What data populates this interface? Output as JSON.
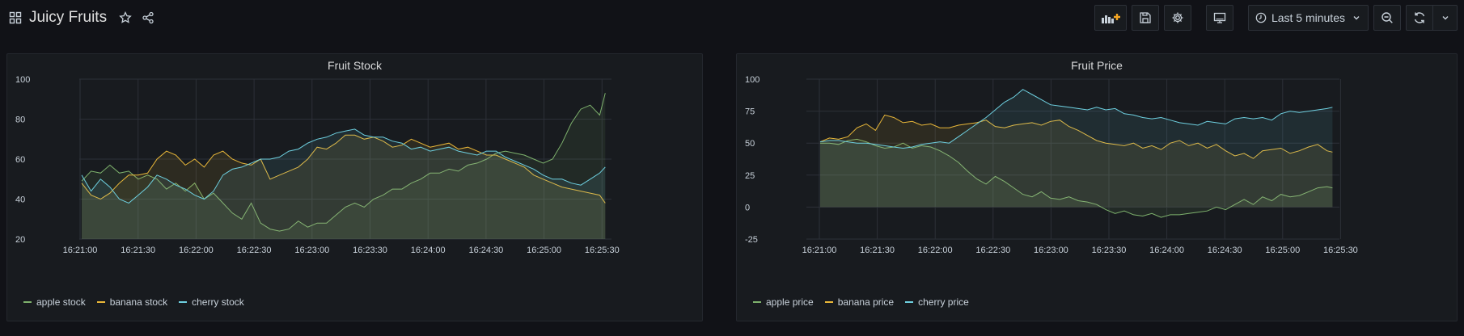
{
  "dashboard": {
    "title": "Juicy Fruits",
    "time_range": "Last 5 minutes",
    "icons": {
      "grid": "dashboard-grid-icon",
      "star": "star-icon",
      "share": "share-icon",
      "add_panel": "add-panel-icon",
      "save": "save-icon",
      "settings": "gear-icon",
      "tv": "tv-mode-icon",
      "clock": "clock-icon",
      "chevron": "chevron-down-icon",
      "zoom_out": "zoom-out-icon",
      "refresh": "refresh-icon"
    },
    "accent": "#f5a623"
  },
  "colors": {
    "apple": "#7eb26d",
    "banana": "#eab839",
    "cherry": "#6ed0e0"
  },
  "chart_data": [
    {
      "type": "area",
      "title": "Fruit Stock",
      "xlabels": [
        "16:21:00",
        "16:21:30",
        "16:22:00",
        "16:22:30",
        "16:23:00",
        "16:23:30",
        "16:24:00",
        "16:24:30",
        "16:25:00",
        "16:25:30"
      ],
      "xlim": [
        0,
        280
      ],
      "ylim": [
        20,
        100
      ],
      "yticks": [
        20,
        40,
        60,
        80,
        100
      ],
      "grid": true,
      "legend_position": "bottom-left",
      "series": [
        {
          "name": "apple stock",
          "color": "#7eb26d",
          "x": [
            0,
            5,
            10,
            15,
            20,
            25,
            30,
            35,
            40,
            45,
            50,
            55,
            60,
            65,
            70,
            75,
            80,
            85,
            90,
            95,
            100,
            105,
            110,
            115,
            120,
            125,
            130,
            135,
            140,
            145,
            150,
            155,
            160,
            165,
            170,
            175,
            180,
            185,
            190,
            195,
            200,
            205,
            210,
            215,
            220,
            225,
            230,
            235,
            240,
            245,
            250,
            255,
            260,
            265,
            270,
            275,
            278
          ],
          "values": [
            49,
            54,
            53,
            57,
            53,
            54,
            50,
            52,
            50,
            45,
            48,
            44,
            48,
            40,
            43,
            38,
            33,
            30,
            38,
            28,
            25,
            24,
            25,
            29,
            26,
            28,
            28,
            32,
            36,
            38,
            36,
            40,
            42,
            45,
            45,
            48,
            50,
            53,
            53,
            55,
            54,
            57,
            58,
            60,
            63,
            64,
            63,
            62,
            60,
            58,
            60,
            68,
            78,
            85,
            87,
            82,
            93
          ]
        },
        {
          "name": "banana stock",
          "color": "#eab839",
          "x": [
            0,
            5,
            10,
            15,
            20,
            25,
            30,
            35,
            40,
            45,
            50,
            55,
            60,
            65,
            70,
            75,
            80,
            85,
            90,
            95,
            100,
            105,
            110,
            115,
            120,
            125,
            130,
            135,
            140,
            145,
            150,
            155,
            160,
            165,
            170,
            175,
            180,
            185,
            190,
            195,
            200,
            205,
            210,
            215,
            220,
            225,
            230,
            235,
            240,
            245,
            250,
            255,
            260,
            265,
            270,
            275,
            278
          ],
          "values": [
            48,
            42,
            40,
            43,
            48,
            52,
            52,
            53,
            60,
            64,
            62,
            57,
            60,
            56,
            62,
            64,
            60,
            58,
            57,
            60,
            50,
            52,
            54,
            56,
            60,
            66,
            65,
            68,
            72,
            72,
            70,
            71,
            69,
            66,
            67,
            70,
            68,
            66,
            67,
            68,
            65,
            66,
            64,
            62,
            62,
            60,
            58,
            56,
            52,
            50,
            48,
            46,
            45,
            44,
            43,
            42,
            38
          ]
        },
        {
          "name": "cherry stock",
          "color": "#6ed0e0",
          "x": [
            0,
            5,
            10,
            15,
            20,
            25,
            30,
            35,
            40,
            45,
            50,
            55,
            60,
            65,
            70,
            75,
            80,
            85,
            90,
            95,
            100,
            105,
            110,
            115,
            120,
            125,
            130,
            135,
            140,
            145,
            150,
            155,
            160,
            165,
            170,
            175,
            180,
            185,
            190,
            195,
            200,
            205,
            210,
            215,
            220,
            225,
            230,
            235,
            240,
            245,
            250,
            255,
            260,
            265,
            270,
            275,
            278
          ],
          "values": [
            52,
            44,
            50,
            46,
            40,
            38,
            42,
            46,
            52,
            50,
            47,
            45,
            42,
            40,
            44,
            52,
            55,
            56,
            58,
            60,
            60,
            61,
            64,
            65,
            68,
            70,
            71,
            73,
            74,
            75,
            72,
            71,
            71,
            69,
            68,
            65,
            66,
            64,
            65,
            66,
            64,
            63,
            62,
            64,
            64,
            61,
            59,
            57,
            55,
            52,
            50,
            50,
            48,
            47,
            50,
            53,
            56
          ]
        }
      ]
    },
    {
      "type": "area",
      "title": "Fruit Price",
      "xlabels": [
        "16:21:00",
        "16:21:30",
        "16:22:00",
        "16:22:30",
        "16:23:00",
        "16:23:30",
        "16:24:00",
        "16:24:30",
        "16:25:00",
        "16:25:30"
      ],
      "xlim": [
        0,
        280
      ],
      "ylim": [
        -25,
        100
      ],
      "yticks": [
        -25,
        0,
        25,
        50,
        75,
        100
      ],
      "grid": true,
      "legend_position": "bottom-left",
      "series": [
        {
          "name": "apple price",
          "color": "#7eb26d",
          "x": [
            0,
            5,
            10,
            15,
            20,
            25,
            30,
            35,
            40,
            45,
            50,
            55,
            60,
            65,
            70,
            75,
            80,
            85,
            90,
            95,
            100,
            105,
            110,
            115,
            120,
            125,
            130,
            135,
            140,
            145,
            150,
            155,
            160,
            165,
            170,
            175,
            180,
            185,
            190,
            195,
            200,
            205,
            210,
            215,
            220,
            225,
            230,
            235,
            240,
            245,
            250,
            255,
            260,
            265,
            270,
            275,
            278
          ],
          "values": [
            50,
            50,
            49,
            52,
            53,
            51,
            48,
            46,
            47,
            50,
            46,
            48,
            47,
            44,
            40,
            35,
            28,
            22,
            18,
            24,
            20,
            15,
            10,
            8,
            12,
            7,
            6,
            8,
            5,
            4,
            2,
            -2,
            -5,
            -3,
            -6,
            -7,
            -5,
            -8,
            -6,
            -6,
            -5,
            -4,
            -3,
            0,
            -2,
            2,
            6,
            2,
            8,
            5,
            10,
            8,
            9,
            12,
            15,
            16,
            15
          ]
        },
        {
          "name": "banana price",
          "color": "#eab839",
          "x": [
            0,
            5,
            10,
            15,
            20,
            25,
            30,
            35,
            40,
            45,
            50,
            55,
            60,
            65,
            70,
            75,
            80,
            85,
            90,
            95,
            100,
            105,
            110,
            115,
            120,
            125,
            130,
            135,
            140,
            145,
            150,
            155,
            160,
            165,
            170,
            175,
            180,
            185,
            190,
            195,
            200,
            205,
            210,
            215,
            220,
            225,
            230,
            235,
            240,
            245,
            250,
            255,
            260,
            265,
            270,
            275,
            278
          ],
          "values": [
            51,
            54,
            53,
            55,
            62,
            65,
            60,
            72,
            70,
            66,
            67,
            64,
            65,
            62,
            62,
            64,
            65,
            66,
            68,
            63,
            62,
            64,
            65,
            66,
            64,
            67,
            68,
            63,
            60,
            56,
            52,
            50,
            49,
            48,
            50,
            46,
            48,
            45,
            50,
            52,
            48,
            50,
            46,
            49,
            44,
            40,
            42,
            38,
            44,
            45,
            46,
            42,
            44,
            47,
            49,
            44,
            43
          ]
        },
        {
          "name": "cherry price",
          "color": "#6ed0e0",
          "x": [
            0,
            5,
            10,
            15,
            20,
            25,
            30,
            35,
            40,
            45,
            50,
            55,
            60,
            65,
            70,
            75,
            80,
            85,
            90,
            95,
            100,
            105,
            110,
            115,
            120,
            125,
            130,
            135,
            140,
            145,
            150,
            155,
            160,
            165,
            170,
            175,
            180,
            185,
            190,
            195,
            200,
            205,
            210,
            215,
            220,
            225,
            230,
            235,
            240,
            245,
            250,
            255,
            260,
            265,
            270,
            275,
            278
          ],
          "values": [
            51,
            52,
            52,
            51,
            50,
            50,
            49,
            48,
            47,
            46,
            47,
            49,
            50,
            51,
            50,
            55,
            60,
            65,
            70,
            76,
            82,
            86,
            92,
            88,
            84,
            80,
            79,
            78,
            77,
            76,
            78,
            76,
            77,
            73,
            72,
            70,
            69,
            70,
            68,
            66,
            65,
            64,
            67,
            66,
            65,
            69,
            70,
            69,
            70,
            68,
            73,
            75,
            74,
            75,
            76,
            77,
            78
          ]
        }
      ]
    }
  ]
}
